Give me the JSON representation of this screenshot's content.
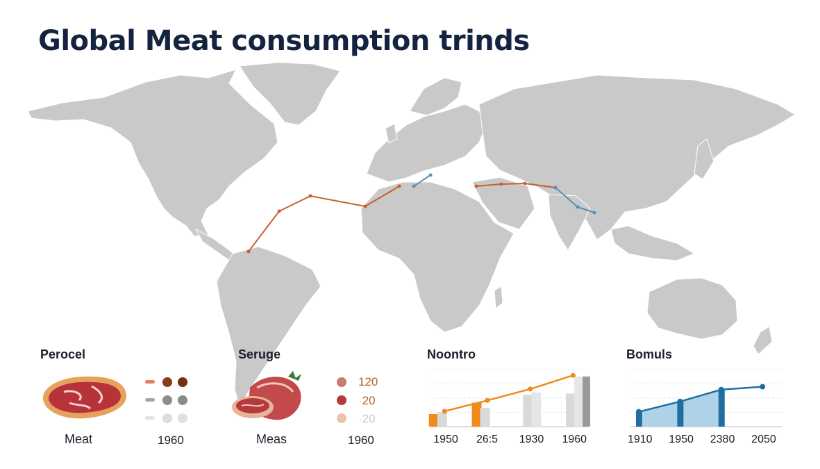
{
  "title": "Global Meat consumption trinds",
  "map": {
    "routes": [
      {
        "color": "#c8602c",
        "points": [
          [
            358,
            362
          ],
          [
            402,
            304
          ],
          [
            447,
            282
          ],
          [
            526,
            297
          ],
          [
            575,
            268
          ]
        ]
      },
      {
        "color": "#5a8fb5",
        "points": [
          [
            596,
            268
          ],
          [
            620,
            252
          ]
        ]
      },
      {
        "color": "#c8602c",
        "points": [
          [
            686,
            268
          ],
          [
            722,
            265
          ],
          [
            756,
            264
          ],
          [
            800,
            270
          ]
        ]
      },
      {
        "color": "#5a8fb5",
        "points": [
          [
            800,
            270
          ],
          [
            832,
            298
          ],
          [
            856,
            306
          ]
        ]
      }
    ],
    "colors": {
      "land": "#c9c9c9",
      "land_dark": "#bcbcbc"
    }
  },
  "panels": {
    "p1": {
      "title": "Perocel",
      "caption": "Meat",
      "year": "1960",
      "icon": "steak-icon",
      "dots": [
        [
          "#e87a6a",
          "#8b3a1e",
          "#7a2d10"
        ],
        [
          "#a6a6a6",
          "#8d8d8d",
          "#8a8a8a"
        ],
        [
          "#e3e3e3",
          "#dddddd",
          "#e0e0e0"
        ]
      ]
    },
    "p2": {
      "title": "Seruge",
      "caption": "Meas",
      "year": "1960",
      "icon": "roast-meat-icon",
      "legend": [
        {
          "dot": "#c77a76",
          "text": "120"
        },
        {
          "dot": "#b33a36",
          "text": "20",
          "faint_prefix": "·"
        },
        {
          "dot": "#e9c3ae",
          "text": "20",
          "faint_prefix": "·"
        }
      ]
    },
    "p3": {
      "title": "Noontro"
    },
    "p4": {
      "title": "Bomuls"
    }
  },
  "chart_data": [
    {
      "type": "bar",
      "title": "Noontro",
      "categories": [
        "1950",
        "26:5",
        "1930",
        "1960"
      ],
      "series": [
        {
          "color": "#f28a1b",
          "values": [
            22,
            42,
            0,
            0
          ]
        },
        {
          "color": "#d9d9d9",
          "values": [
            25,
            33,
            56,
            58
          ]
        },
        {
          "color": "#e6e6e6",
          "values": [
            0,
            0,
            60,
            88
          ]
        },
        {
          "color": "#9a9a9a",
          "values": [
            0,
            0,
            0,
            88
          ]
        }
      ],
      "line": {
        "color": "#f28a1b",
        "values": [
          27,
          46,
          66,
          90
        ]
      },
      "ylim": [
        0,
        100
      ],
      "grid": true
    },
    {
      "type": "area",
      "title": "Bomuls",
      "categories": [
        "1910",
        "1950",
        "2380",
        "2050"
      ],
      "series": [
        {
          "color": "#1e6ea1",
          "values": [
            26,
            44,
            65,
            70
          ]
        }
      ],
      "ylim": [
        0,
        100
      ],
      "grid": true
    }
  ]
}
